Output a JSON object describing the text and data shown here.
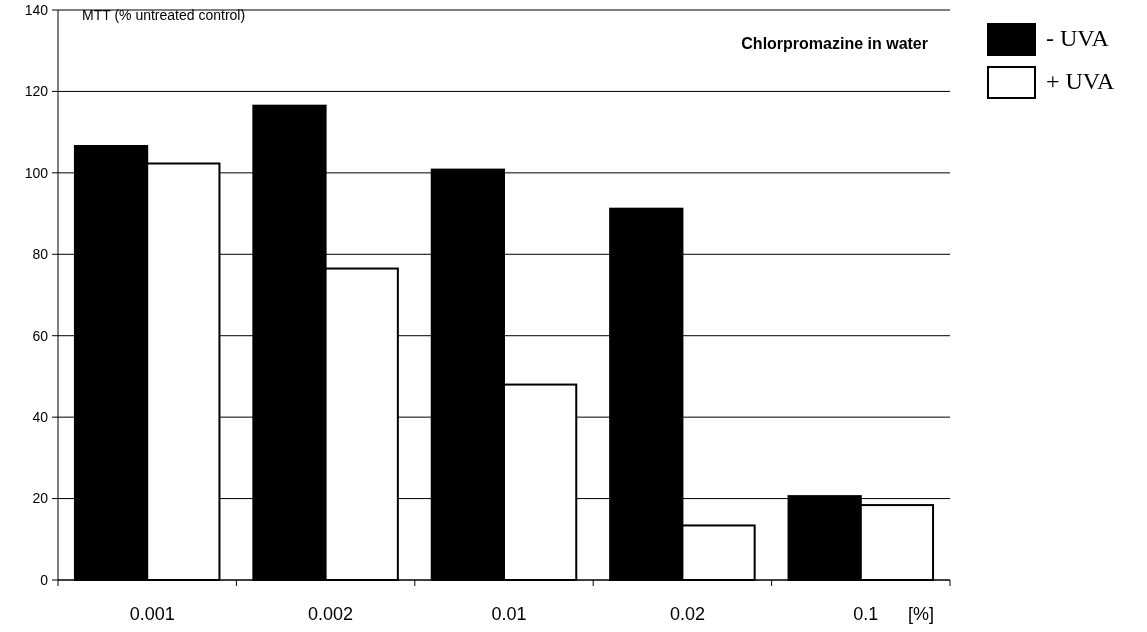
{
  "chart_data": {
    "type": "bar",
    "title": "Chlorpromazine in water",
    "ylabel": "MTT (% untreated control)",
    "xlabel": "[%]",
    "categories": [
      "0.001",
      "0.002",
      "0.01",
      "0.02",
      "0.1"
    ],
    "series": [
      {
        "name": "- UVA",
        "color": "#000000",
        "values": [
          106.6,
          116.5,
          100.8,
          91.2,
          20.6
        ]
      },
      {
        "name": "+ UVA",
        "color": "#ffffff",
        "values": [
          102.3,
          76.5,
          48.0,
          13.4,
          18.4
        ]
      }
    ],
    "ylim": [
      0,
      140
    ],
    "yticks": [
      0,
      20,
      40,
      60,
      80,
      100,
      120,
      140
    ],
    "grid": "y",
    "legend": "top right"
  }
}
